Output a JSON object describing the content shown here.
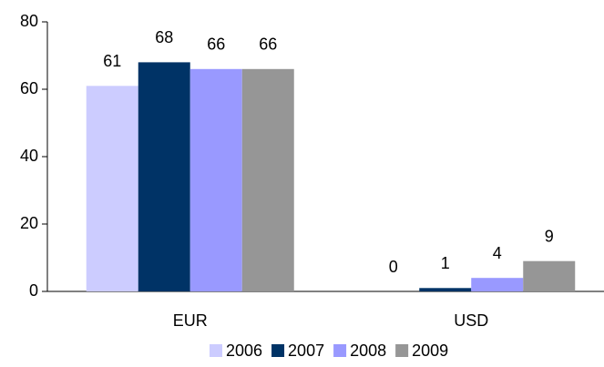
{
  "chart_data": {
    "type": "bar",
    "categories": [
      "EUR",
      "USD"
    ],
    "series": [
      {
        "name": "2006",
        "color": "#ccccff",
        "values": [
          61,
          0
        ]
      },
      {
        "name": "2007",
        "color": "#003366",
        "values": [
          68,
          1
        ]
      },
      {
        "name": "2008",
        "color": "#9999ff",
        "values": [
          66,
          4
        ]
      },
      {
        "name": "2009",
        "color": "#969696",
        "values": [
          66,
          9
        ]
      }
    ],
    "ylim": [
      0,
      80
    ],
    "yticks": [
      0,
      20,
      40,
      60,
      80
    ],
    "grid": false,
    "legend": "bottom"
  }
}
